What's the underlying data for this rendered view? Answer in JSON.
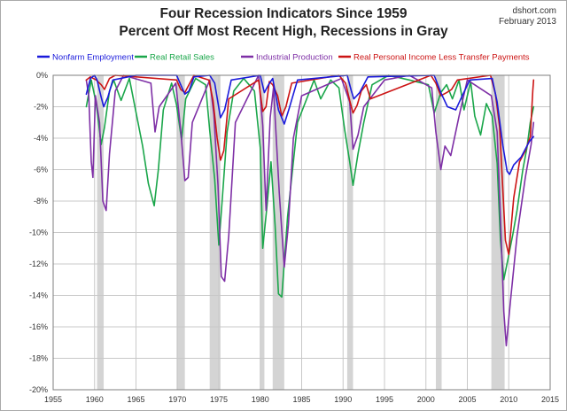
{
  "chart_data": {
    "type": "line",
    "title": "Four Recession Indicators Since 1959",
    "subtitle": "Percent Off Most Recent High, Recessions in Gray",
    "source_label": "dshort.com",
    "date_label": "February 2013",
    "xlabel": "",
    "ylabel": "",
    "xlim": [
      1955,
      2015
    ],
    "ylim": [
      -20,
      0
    ],
    "x_ticks": [
      "1955",
      "1960",
      "1965",
      "1970",
      "1975",
      "1980",
      "1985",
      "1990",
      "1995",
      "2000",
      "2005",
      "2010",
      "2015"
    ],
    "y_ticks": [
      "0%",
      "-2%",
      "-4%",
      "-6%",
      "-8%",
      "-10%",
      "-12%",
      "-14%",
      "-16%",
      "-18%",
      "-20%"
    ],
    "grid": true,
    "legend_position": "top",
    "recessions": [
      [
        1960.3,
        1961.1
      ],
      [
        1969.9,
        1970.9
      ],
      [
        1973.9,
        1975.2
      ],
      [
        1980.0,
        1980.5
      ],
      [
        1981.5,
        1982.9
      ],
      [
        1990.5,
        1991.2
      ],
      [
        2001.2,
        2001.9
      ],
      [
        2007.9,
        2009.5
      ]
    ],
    "recession_color": "#d4d4d4",
    "series": [
      {
        "name": "Nonfarm Employment",
        "color": "#1a1adb",
        "x": [
          1959.0,
          1959.5,
          1960.0,
          1960.3,
          1960.8,
          1961.1,
          1961.6,
          1962.2,
          1965.0,
          1969.9,
          1970.4,
          1970.9,
          1971.4,
          1972.0,
          1973.9,
          1974.5,
          1975.2,
          1975.7,
          1976.5,
          1980.0,
          1980.5,
          1981.0,
          1981.5,
          1982.2,
          1982.9,
          1983.5,
          1984.5,
          1990.5,
          1991.0,
          1991.3,
          1992.0,
          1993.0,
          2001.0,
          2001.8,
          2002.6,
          2003.6,
          2004.3,
          2005.3,
          2008.0,
          2008.6,
          2009.3,
          2009.8,
          2010.1,
          2010.6,
          2011.5,
          2012.5,
          2013.0
        ],
        "values": [
          -1.2,
          -0.2,
          0,
          -0.3,
          -1.4,
          -2.0,
          -1.4,
          -0.3,
          0,
          0,
          -0.6,
          -1.2,
          -1.0,
          -0.1,
          0,
          -0.5,
          -2.7,
          -2.2,
          -0.3,
          0,
          -1.1,
          -0.6,
          -0.2,
          -2.2,
          -3.1,
          -2.1,
          -0.3,
          0,
          -1.0,
          -1.5,
          -1.1,
          -0.1,
          0,
          -1.1,
          -2.0,
          -2.2,
          -1.4,
          -0.3,
          -0.2,
          -1.7,
          -4.5,
          -6.1,
          -6.3,
          -5.7,
          -5.2,
          -4.2,
          -3.9
        ]
      },
      {
        "name": "Real Retail Sales",
        "color": "#1aa64a",
        "x": [
          1959.0,
          1959.6,
          1960.2,
          1960.8,
          1961.2,
          1961.8,
          1962.3,
          1963.2,
          1964.2,
          1965.8,
          1966.5,
          1967.2,
          1967.7,
          1968.3,
          1969.3,
          1969.9,
          1970.5,
          1971.0,
          1972.2,
          1973.4,
          1973.9,
          1974.5,
          1975.0,
          1975.4,
          1976.0,
          1976.8,
          1978.0,
          1979.3,
          1980.0,
          1980.3,
          1980.8,
          1981.3,
          1981.8,
          1982.2,
          1982.6,
          1983.3,
          1984.5,
          1986.5,
          1987.3,
          1988.5,
          1989.5,
          1990.2,
          1990.8,
          1991.2,
          1991.8,
          1992.5,
          1993.5,
          1995.5,
          1998.0,
          2000.3,
          2001.0,
          2001.8,
          2002.5,
          2003.2,
          2004.0,
          2004.6,
          2005.4,
          2005.9,
          2006.6,
          2007.3,
          2008.0,
          2008.6,
          2009.0,
          2009.4,
          2009.9,
          2010.5,
          2011.0,
          2011.7,
          2012.2,
          2012.6,
          2013.0
        ],
        "values": [
          -2.0,
          -0.3,
          -1.8,
          -4.4,
          -3.3,
          -1.0,
          -0.3,
          -1.6,
          -0.2,
          -4.5,
          -6.9,
          -8.3,
          -6.0,
          -2.2,
          -0.5,
          -1.9,
          -4.1,
          -1.5,
          -0.2,
          -0.6,
          -3.5,
          -6.6,
          -10.8,
          -8.0,
          -3.6,
          -1.0,
          -0.2,
          -1.0,
          -4.6,
          -11.0,
          -8.4,
          -5.5,
          -9.6,
          -13.9,
          -14.1,
          -9.0,
          -3.0,
          -0.3,
          -1.5,
          -0.3,
          -0.8,
          -3.5,
          -5.5,
          -7.0,
          -5.0,
          -3.0,
          -0.6,
          0,
          -0.3,
          -0.6,
          -2.4,
          -1.1,
          -0.6,
          -1.5,
          -0.3,
          -2.2,
          -0.4,
          -2.6,
          -3.8,
          -1.8,
          -2.6,
          -5.6,
          -10.5,
          -13.0,
          -11.7,
          -10.1,
          -8.6,
          -6.0,
          -4.6,
          -3.0,
          -2.0
        ]
      },
      {
        "name": "Industrial Production",
        "color": "#7e2fa6",
        "x": [
          1959.0,
          1959.3,
          1959.6,
          1959.8,
          1960.1,
          1960.6,
          1961.0,
          1961.4,
          1961.8,
          1962.5,
          1963.5,
          1966.8,
          1967.3,
          1967.8,
          1969.8,
          1970.4,
          1970.9,
          1971.3,
          1971.8,
          1973.9,
          1974.4,
          1974.9,
          1975.3,
          1975.7,
          1976.2,
          1977.0,
          1979.8,
          1980.3,
          1980.7,
          1981.2,
          1981.6,
          1982.3,
          1982.9,
          1983.4,
          1984.0,
          1985.0,
          1989.8,
          1990.8,
          1991.2,
          1991.8,
          1992.5,
          1995.0,
          1998.0,
          2000.7,
          2001.2,
          2001.8,
          2002.3,
          2003.0,
          2004.0,
          2005.0,
          2007.9,
          2008.6,
          2009.0,
          2009.4,
          2009.7,
          2010.2,
          2011.0,
          2012.0,
          2012.7,
          2013.0
        ],
        "values": [
          -0.3,
          -1.3,
          -5.5,
          -6.5,
          -1.3,
          -3.0,
          -8.0,
          -8.6,
          -5.0,
          -1.0,
          0,
          -0.5,
          -3.6,
          -2.0,
          -0.5,
          -3.5,
          -6.7,
          -6.5,
          -3.0,
          -0.3,
          -2.5,
          -7.0,
          -12.8,
          -13.1,
          -10.2,
          -3.0,
          0,
          -3.2,
          -8.6,
          -2.7,
          -0.8,
          -7.5,
          -12.2,
          -9.5,
          -4.0,
          -1.3,
          -0.2,
          -1.7,
          -4.7,
          -3.8,
          -2.0,
          -0.3,
          0,
          -0.8,
          -3.6,
          -6.0,
          -4.5,
          -5.1,
          -2.6,
          -0.3,
          -1.3,
          -3.6,
          -9.0,
          -15.0,
          -17.2,
          -14.4,
          -10.2,
          -6.5,
          -4.4,
          -3.0
        ]
      },
      {
        "name": "Real Personal Income Less Transfer Payments",
        "color": "#cc1414",
        "x": [
          1959.0,
          1959.5,
          1960.2,
          1960.8,
          1961.2,
          1961.8,
          1962.5,
          1969.9,
          1970.4,
          1970.9,
          1971.4,
          1972.0,
          1973.8,
          1974.3,
          1974.8,
          1975.2,
          1975.6,
          1976.2,
          1979.8,
          1980.3,
          1980.7,
          1981.1,
          1981.5,
          1982.1,
          1982.6,
          1983.1,
          1983.8,
          1989.5,
          1990.3,
          1990.8,
          1991.2,
          1991.7,
          1992.2,
          1992.8,
          1993.3,
          2000.6,
          2001.2,
          2001.8,
          2002.5,
          2003.1,
          2003.8,
          2007.8,
          2008.4,
          2008.9,
          2009.2,
          2009.6,
          2010.0,
          2010.6,
          2011.3,
          2012.0,
          2012.6,
          2012.9,
          2013.0
        ],
        "values": [
          -0.3,
          -0.1,
          -0.3,
          -0.6,
          -0.9,
          -0.2,
          0,
          -0.3,
          -0.9,
          -1.1,
          -0.6,
          0,
          -0.3,
          -1.6,
          -4.0,
          -5.4,
          -4.8,
          -1.5,
          -0.3,
          -2.3,
          -2.0,
          -0.4,
          -0.6,
          -1.3,
          -2.6,
          -2.0,
          -0.5,
          0,
          -0.5,
          -1.6,
          -2.4,
          -1.9,
          -1.0,
          -0.6,
          -1.5,
          0,
          -0.5,
          -1.3,
          -1.1,
          -0.9,
          -0.3,
          0,
          -1.2,
          -3.3,
          -6.4,
          -10.5,
          -11.4,
          -7.8,
          -5.5,
          -4.8,
          -3.9,
          -1.0,
          -0.3
        ]
      }
    ]
  }
}
